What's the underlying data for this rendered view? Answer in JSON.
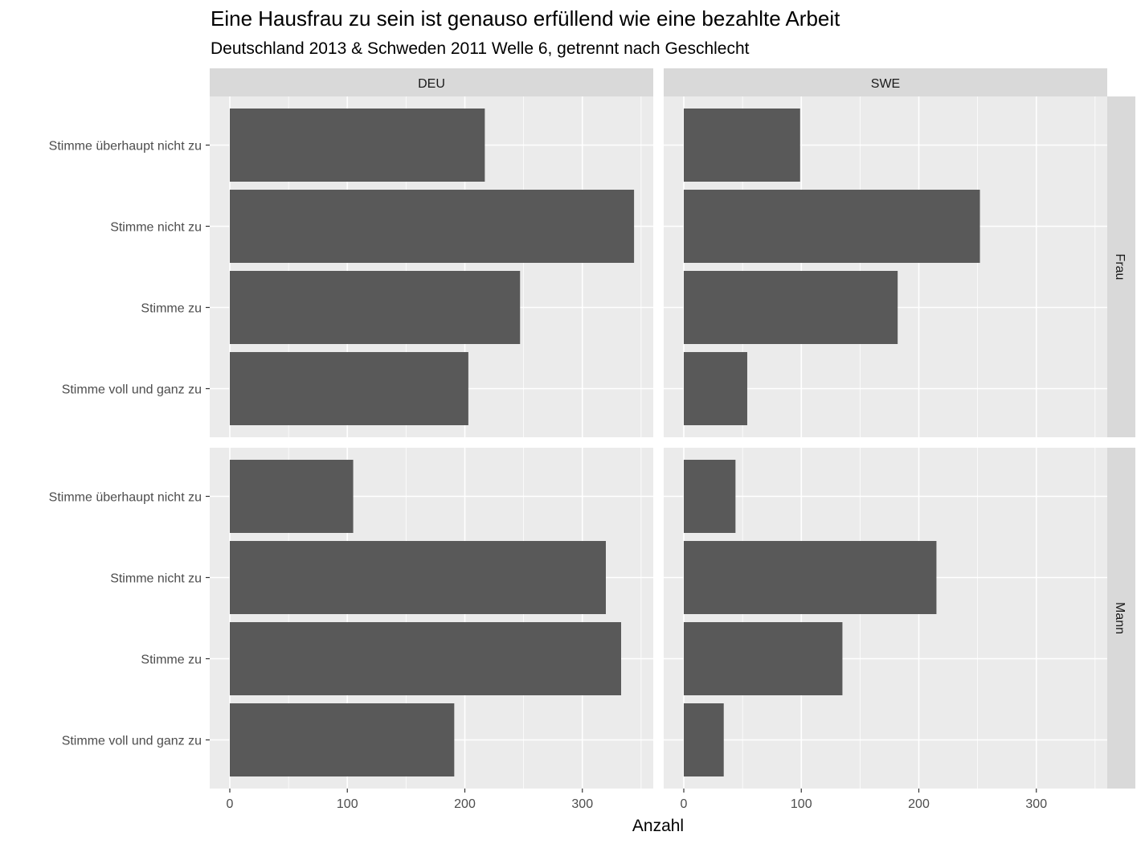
{
  "chart_data": {
    "type": "bar",
    "orientation": "horizontal",
    "title": "Eine Hausfrau zu sein ist genauso erfüllend wie eine bezahlte Arbeit",
    "subtitle": "Deutschland 2013 & Schweden 2011 Welle 6, getrennt nach Geschlecht",
    "xlabel": "Anzahl",
    "ylabel": "",
    "xlim": [
      0,
      360
    ],
    "x_ticks": [
      0,
      100,
      200,
      300
    ],
    "categories": [
      "Stimme überhaupt nicht zu",
      "Stimme nicht zu",
      "Stimme zu",
      "Stimme voll und ganz zu"
    ],
    "facet_columns": [
      "DEU",
      "SWE"
    ],
    "facet_rows": [
      "Frau",
      "Mann"
    ],
    "grid": true,
    "colors": {
      "bar": "#595959",
      "panel_background": "#ebebeb",
      "grid_line": "#ffffff",
      "strip_background": "#d9d9d9"
    },
    "panels": [
      {
        "column": "DEU",
        "row": "Frau",
        "values": [
          217,
          344,
          247,
          203
        ]
      },
      {
        "column": "SWE",
        "row": "Frau",
        "values": [
          99,
          252,
          182,
          54
        ]
      },
      {
        "column": "DEU",
        "row": "Mann",
        "values": [
          105,
          320,
          333,
          191
        ]
      },
      {
        "column": "SWE",
        "row": "Mann",
        "values": [
          44,
          215,
          135,
          34
        ]
      }
    ]
  }
}
